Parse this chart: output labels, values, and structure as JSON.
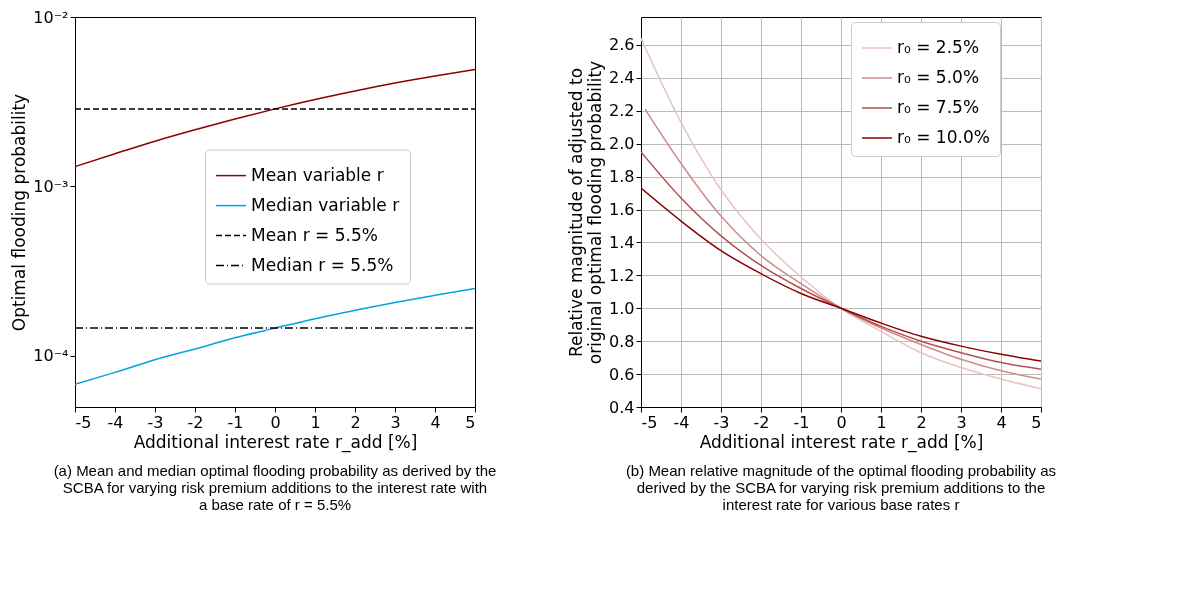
{
  "chart_data": [
    {
      "type": "line",
      "xlabel": "Additional interest rate r_add [%]",
      "ylabel": "Optimal flooding probability",
      "log": "y",
      "grid": false,
      "legend": "right",
      "x": [
        -5,
        -4,
        -3,
        -2,
        -1,
        0,
        1,
        2,
        3,
        4,
        5
      ],
      "xlim": [
        -5,
        5
      ],
      "xticks": [
        -5,
        -4,
        -3,
        -2,
        -1,
        0,
        1,
        2,
        3,
        4,
        5
      ],
      "ylim": [
        5e-05,
        0.01
      ],
      "yticks": [
        {
          "value": 0.0001,
          "label": "10⁻⁴"
        },
        {
          "value": 0.001,
          "label": "10⁻³"
        },
        {
          "value": 0.01,
          "label": "10⁻²"
        }
      ],
      "series": [
        {
          "name": "Mean variable r",
          "color": "#8b0000",
          "values": [
            0.00131,
            0.00156,
            0.00185,
            0.00216,
            0.0025,
            0.00287,
            0.00326,
            0.00366,
            0.00408,
            0.00449,
            0.0049
          ]
        },
        {
          "name": "Median variable r",
          "color": "#00a5e0",
          "values": [
            6.8e-05,
            8e-05,
            9.5e-05,
            0.00011,
            0.000128,
            0.000146,
            0.000166,
            0.000186,
            0.000207,
            0.000228,
            0.00025
          ]
        },
        {
          "name": "Mean r = 5.5%",
          "color": "#000000",
          "line_style": "dashed",
          "x": [
            -5,
            5
          ],
          "values": [
            0.00287,
            0.00287
          ]
        },
        {
          "name": "Median r = 5.5%",
          "color": "#000000",
          "line_style": "dashdot",
          "x": [
            -5,
            5
          ],
          "values": [
            0.000146,
            0.000146
          ]
        }
      ],
      "annotations": [
        "(a) Mean and median optimal flooding probability as derived by the SCBA for varying risk premium additions to the interest rate with a base rate of r = 5.5%"
      ]
    },
    {
      "type": "line",
      "xlabel": "Additional interest rate r_add [%]",
      "ylabel": "Relative magnitude of adjusted to original optimal flooding probability",
      "grid": true,
      "legend": "top right",
      "x": [
        -5,
        -4,
        -3,
        -2,
        -1,
        0,
        1,
        2,
        3,
        4,
        5
      ],
      "xlim": [
        -5,
        5
      ],
      "xticks": [
        -5,
        -4,
        -3,
        -2,
        -1,
        0,
        1,
        2,
        3,
        4,
        5
      ],
      "ylim": [
        0.4,
        2.77
      ],
      "yticks": [
        0.4,
        0.6,
        0.8,
        {
          "value": 1,
          "label": "1.0"
        },
        1.2,
        1.4,
        1.6,
        1.8,
        {
          "value": 2,
          "label": "2.0"
        },
        2.2,
        2.4,
        2.6
      ],
      "series": [
        {
          "name": "r₀ = 2.5%",
          "color": "#e8c3c3",
          "values": [
            2.64,
            2.13,
            1.72,
            1.42,
            1.19,
            1.0,
            0.86,
            0.73,
            0.64,
            0.57,
            0.51
          ]
        },
        {
          "name": "r₀ = 5.0%",
          "color": "#d08a8a",
          "x": [
            -4.9,
            -4,
            -3,
            -2,
            -1,
            0,
            1,
            2,
            3,
            4,
            5
          ],
          "values": [
            2.21,
            1.88,
            1.56,
            1.32,
            1.15,
            1.0,
            0.88,
            0.78,
            0.69,
            0.62,
            0.57
          ]
        },
        {
          "name": "r₀ = 7.5%",
          "color": "#b54e4e",
          "values": [
            1.95,
            1.67,
            1.44,
            1.26,
            1.12,
            1.0,
            0.89,
            0.8,
            0.73,
            0.67,
            0.63
          ]
        },
        {
          "name": "r₀ = 10.0%",
          "color": "#8b0000",
          "values": [
            1.73,
            1.53,
            1.35,
            1.21,
            1.09,
            1.0,
            0.91,
            0.83,
            0.77,
            0.72,
            0.68
          ]
        }
      ],
      "annotations": [
        "(b) Mean relative magnitude of the optimal flooding probability as derived by the SCBA for varying risk premium additions to the interest rate for various base rates r"
      ]
    }
  ]
}
